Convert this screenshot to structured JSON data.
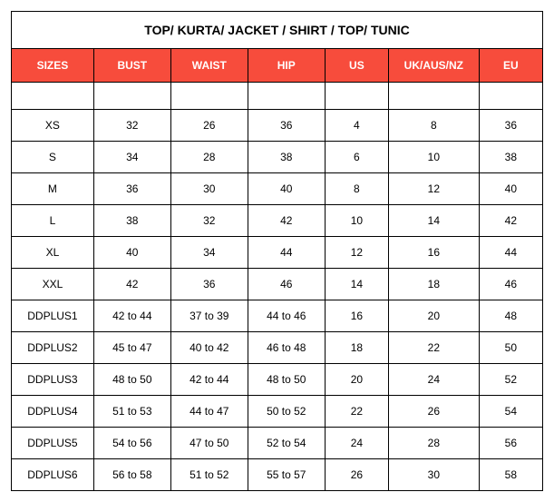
{
  "table": {
    "title": "TOP/ KURTA/ JACKET / SHIRT / TOP/ TUNIC",
    "header_bg": "#f74c3c",
    "header_color": "#ffffff",
    "border_color": "#000000",
    "title_fontsize": 14,
    "header_fontsize": 12,
    "cell_fontsize": 12,
    "columns": [
      "SIZES",
      "BUST",
      "WAIST",
      "HIP",
      "US",
      "UK/AUS/NZ",
      "EU"
    ],
    "rows": [
      {
        "size": "XS",
        "bust": "32",
        "waist": "26",
        "hip": "36",
        "us": "4",
        "uk": "8",
        "eu": "36"
      },
      {
        "size": "S",
        "bust": "34",
        "waist": "28",
        "hip": "38",
        "us": "6",
        "uk": "10",
        "eu": "38"
      },
      {
        "size": "M",
        "bust": "36",
        "waist": "30",
        "hip": "40",
        "us": "8",
        "uk": "12",
        "eu": "40"
      },
      {
        "size": "L",
        "bust": "38",
        "waist": "32",
        "hip": "42",
        "us": "10",
        "uk": "14",
        "eu": "42"
      },
      {
        "size": "XL",
        "bust": "40",
        "waist": "34",
        "hip": "44",
        "us": "12",
        "uk": "16",
        "eu": "44"
      },
      {
        "size": "XXL",
        "bust": "42",
        "waist": "36",
        "hip": "46",
        "us": "14",
        "uk": "18",
        "eu": "46"
      },
      {
        "size": "DDPLUS1",
        "bust": "42 to 44",
        "waist": "37 to 39",
        "hip": "44 to 46",
        "us": "16",
        "uk": "20",
        "eu": "48"
      },
      {
        "size": "DDPLUS2",
        "bust": "45 to 47",
        "waist": "40 to 42",
        "hip": "46 to 48",
        "us": "18",
        "uk": "22",
        "eu": "50"
      },
      {
        "size": "DDPLUS3",
        "bust": "48 to 50",
        "waist": "42 to 44",
        "hip": "48 to 50",
        "us": "20",
        "uk": "24",
        "eu": "52"
      },
      {
        "size": "DDPLUS4",
        "bust": "51 to 53",
        "waist": "44 to 47",
        "hip": "50 to 52",
        "us": "22",
        "uk": "26",
        "eu": "54"
      },
      {
        "size": "DDPLUS5",
        "bust": "54 to 56",
        "waist": "47 to 50",
        "hip": "52 to 54",
        "us": "24",
        "uk": "28",
        "eu": "56"
      },
      {
        "size": "DDPLUS6",
        "bust": "56 to 58",
        "waist": "51 to 52",
        "hip": "55 to 57",
        "us": "26",
        "uk": "30",
        "eu": "58"
      }
    ]
  }
}
